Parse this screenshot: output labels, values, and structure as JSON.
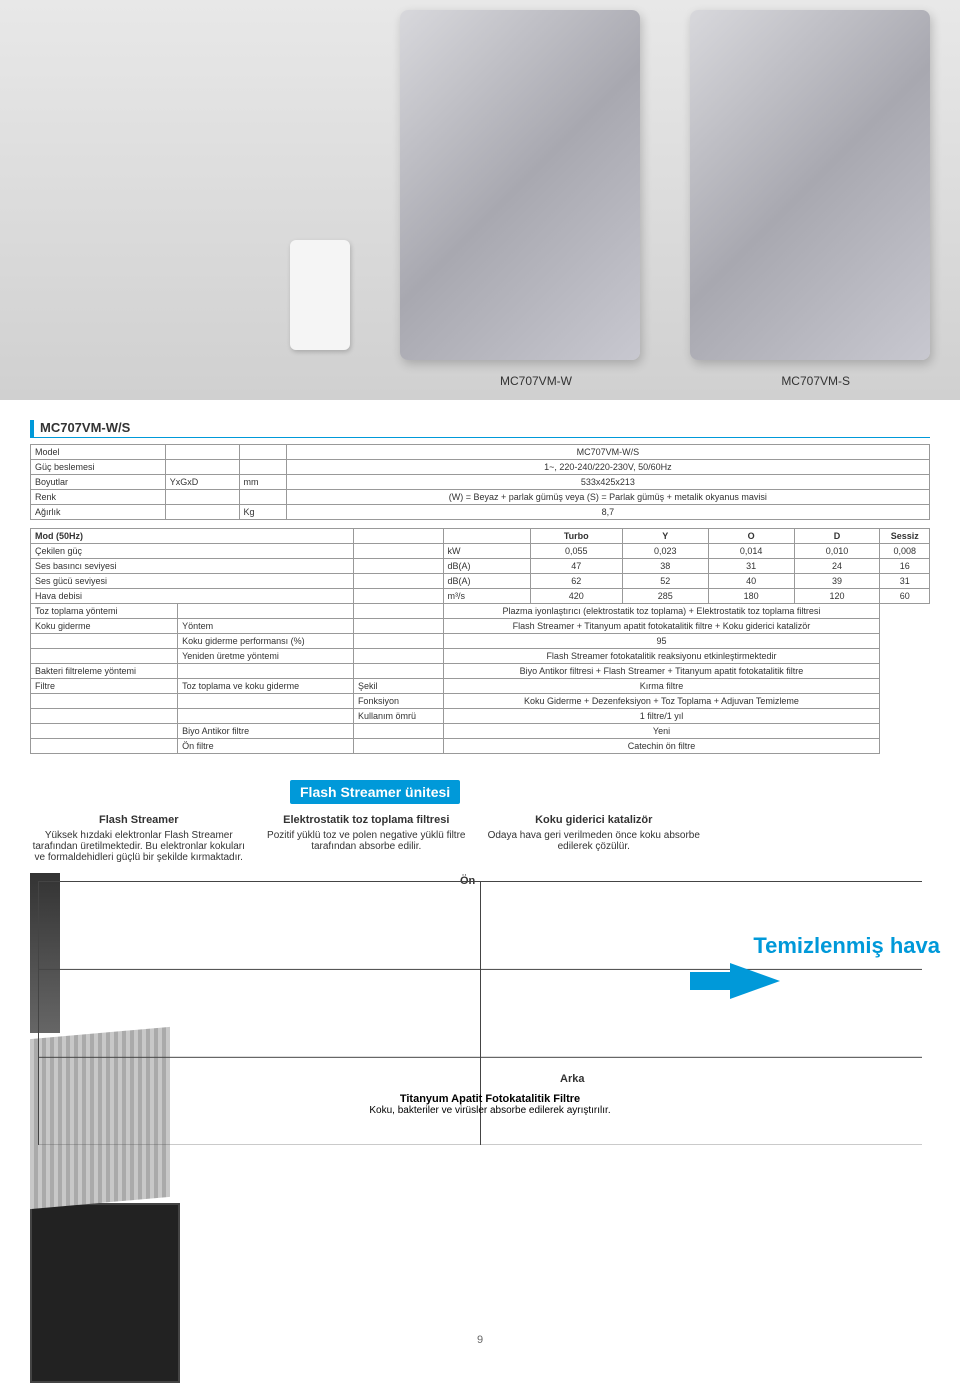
{
  "products": {
    "left_label": "MC707VM-W",
    "right_label": "MC707VM-S"
  },
  "spec_header": "MC707VM-W/S",
  "table1": {
    "rows": [
      [
        "Model",
        "",
        "",
        "MC707VM-W/S"
      ],
      [
        "Güç beslemesi",
        "",
        "",
        "1~, 220-240/220-230V, 50/60Hz"
      ],
      [
        "Boyutlar",
        "YxGxD",
        "mm",
        "533x425x213"
      ],
      [
        "Renk",
        "",
        "",
        "(W) = Beyaz + parlak gümüş veya (S) = Parlak gümüş + metalik okyanus mavisi"
      ],
      [
        "Ağırlık",
        "",
        "Kg",
        "8,7"
      ]
    ]
  },
  "table2_head": [
    "Mod (50Hz)",
    "",
    "",
    "Turbo",
    "Y",
    "O",
    "D",
    "Sessiz"
  ],
  "table2_rows": [
    [
      "Çekilen güç",
      "",
      "kW",
      "0,055",
      "0,023",
      "0,014",
      "0,010",
      "0,008"
    ],
    [
      "Ses basıncı seviyesi",
      "",
      "dB(A)",
      "47",
      "38",
      "31",
      "24",
      "16"
    ],
    [
      "Ses gücü seviyesi",
      "",
      "dB(A)",
      "62",
      "52",
      "40",
      "39",
      "31"
    ],
    [
      "Hava debisi",
      "",
      "m³/s",
      "420",
      "285",
      "180",
      "120",
      "60"
    ]
  ],
  "table2_full": [
    [
      "Toz toplama yöntemi",
      "",
      "",
      "Plazma iyonlaştırıcı (elektrostatik toz toplama) + Elektrostatik toz toplama filtresi"
    ],
    [
      "Koku giderme",
      "Yöntem",
      "",
      "Flash Streamer + Titanyum apatit fotokatalitik filtre + Koku giderici katalizör"
    ],
    [
      "",
      "Koku giderme performansı (%)",
      "",
      "95"
    ],
    [
      "",
      "Yeniden üretme yöntemi",
      "",
      "Flash Streamer fotokatalitik reaksiyonu etkinleştirmektedir"
    ],
    [
      "Bakteri filtreleme yöntemi",
      "",
      "",
      "Biyo Antikor filtresi + Flash Streamer + Titanyum apatit fotokatalitik filtre"
    ],
    [
      "Filtre",
      "Toz toplama ve koku giderme",
      "Şekil",
      "Kırma filtre"
    ],
    [
      "",
      "",
      "Fonksiyon",
      "Koku Giderme + Dezenfeksiyon + Toz Toplama + Adjuvan Temizleme"
    ],
    [
      "",
      "",
      "Kullanım ömrü",
      "1 filtre/1 yıl"
    ],
    [
      "",
      "Biyo Antikor filtre",
      "",
      "Yeni"
    ],
    [
      "",
      "Ön filtre",
      "",
      "Catechin ön filtre"
    ]
  ],
  "section_title": "Flash Streamer ünitesi",
  "cols": [
    {
      "h": "Flash Streamer",
      "t": "Yüksek hızdaki elektronlar Flash Streamer tarafından üretilmektedir. Bu elektronlar kokuları ve formaldehidleri güçlü bir şekilde kırmaktadır."
    },
    {
      "h": "Elektrostatik toz toplama filtresi",
      "t": "Pozitif yüklü toz ve polen negative yüklü filtre tarafından absorbe edilir."
    },
    {
      "h": "Koku giderici katalizör",
      "t": "Odaya hava geri verilmeden önce koku absorbe edilerek çözülür."
    }
  ],
  "on": "Ön",
  "arka": "Arka",
  "bottom": {
    "h": "Titanyum Apatit Fotokatalitik Filtre",
    "t": "Koku, bakteriler ve virüsler absorbe edilerek ayrıştırılır."
  },
  "clean_air": "Temizlenmiş hava",
  "page": "9",
  "colors": {
    "accent": "#0099d9",
    "border": "#999999",
    "text": "#333333"
  }
}
